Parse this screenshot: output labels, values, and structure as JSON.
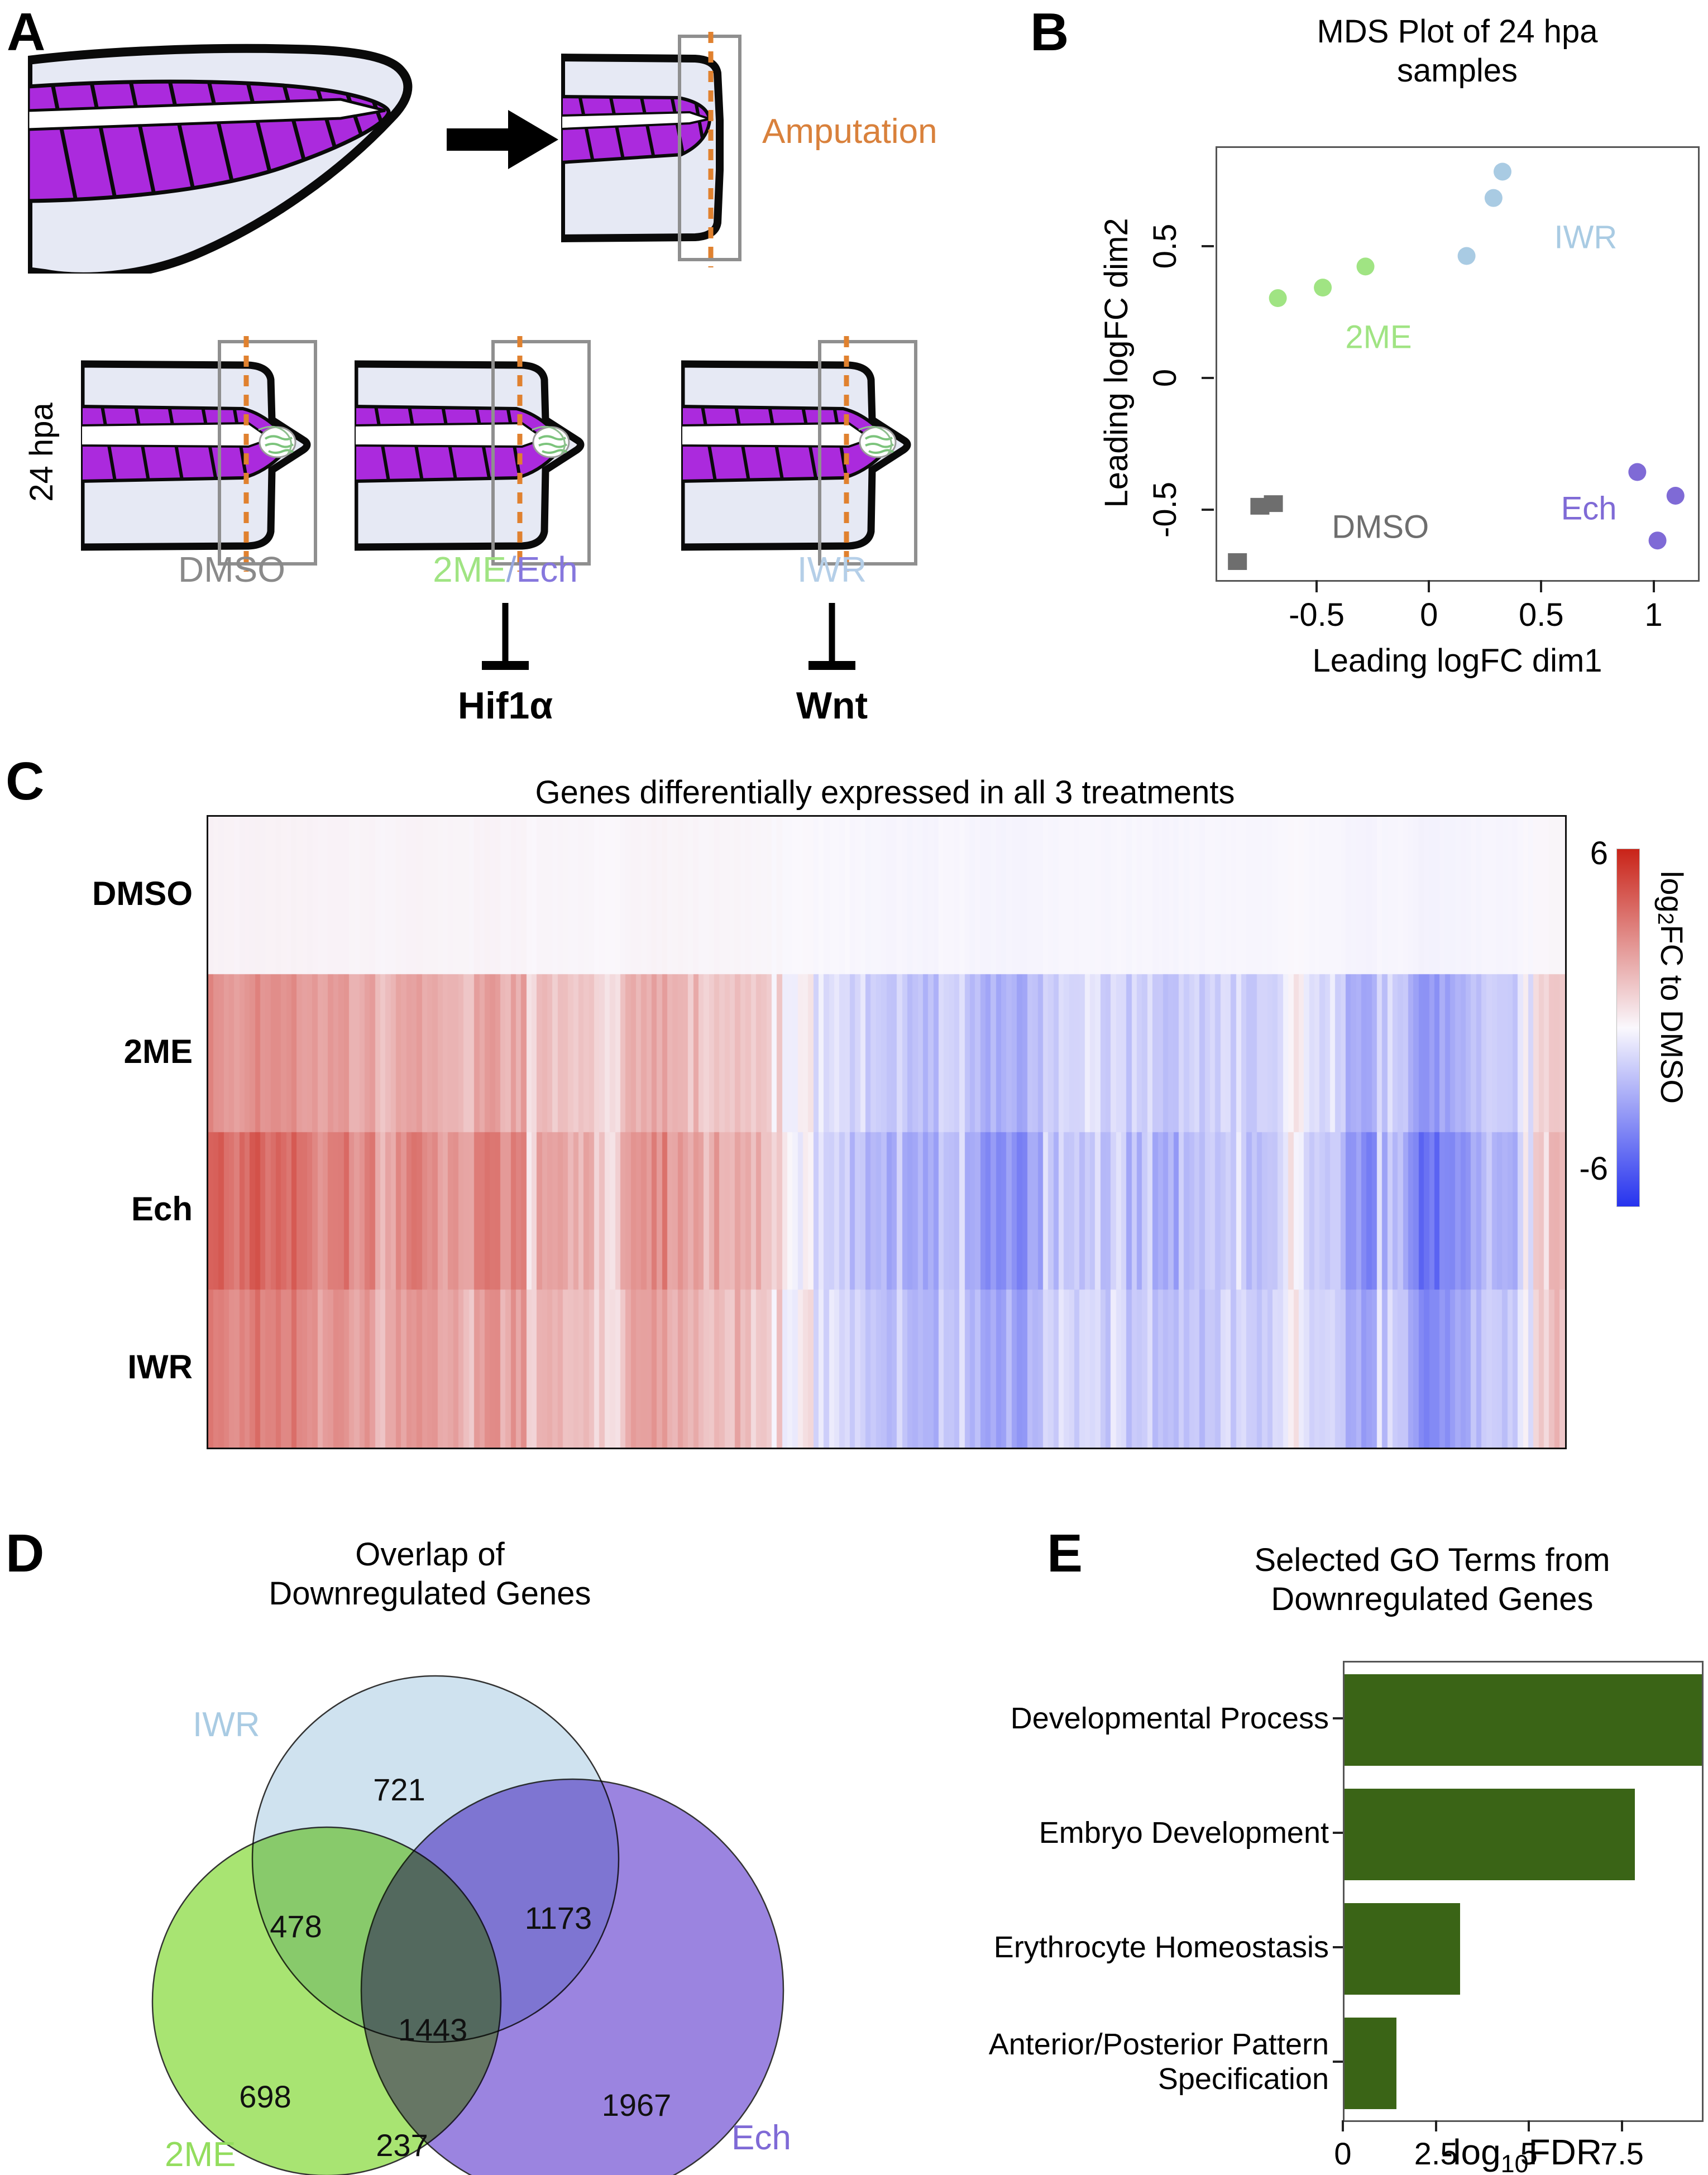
{
  "panels": {
    "a": "A",
    "b": "B",
    "c": "C",
    "d": "D",
    "e": "E"
  },
  "panel_a": {
    "amputation_label": "Amputation",
    "amputation_color": "#d9813c",
    "timepoint_label": "24 hpa",
    "fin_fill": "#e6e9f4",
    "muscle_fill": "#ab2add",
    "box_stroke": "#8f8f8f",
    "dash_color": "#e0812f",
    "treatments": [
      {
        "parts": [
          {
            "text": "DMSO",
            "color": "#8a8a8a"
          }
        ],
        "inhibits": ""
      },
      {
        "parts": [
          {
            "text": "2ME",
            "color": "#a0e483"
          },
          {
            "text": "/",
            "color": "#97a7e0"
          },
          {
            "text": "Ech",
            "color": "#8677dd"
          }
        ],
        "inhibits": "Hif1α"
      },
      {
        "parts": [
          {
            "text": "IWR",
            "color": "#b5cfe8"
          }
        ],
        "inhibits": "Wnt"
      }
    ]
  },
  "chart_data": [
    {
      "id": "mds",
      "type": "scatter",
      "title_lines": [
        "MDS Plot of 24 hpa",
        "samples"
      ],
      "xlabel": "Leading logFC dim1",
      "ylabel": "Leading logFC dim2",
      "xlim": [
        -0.95,
        1.19
      ],
      "ylim": [
        -0.76,
        0.88
      ],
      "x_ticks": [
        "-0.5",
        "0",
        "0.5",
        "1"
      ],
      "x_tick_vals": [
        -0.5,
        0,
        0.5,
        1
      ],
      "y_ticks": [
        "0.5",
        "0",
        "-0.5"
      ],
      "y_tick_vals": [
        0.5,
        0,
        -0.5
      ],
      "grid": false,
      "series": [
        {
          "name": "IWR",
          "color": "#a9cbe3",
          "marker": "circle",
          "points": [
            [
              0.32,
              0.79
            ],
            [
              0.28,
              0.69
            ],
            [
              0.16,
              0.47
            ]
          ],
          "label_pos": [
            0.55,
            0.5
          ]
        },
        {
          "name": "2ME",
          "color": "#a0e483",
          "marker": "circle",
          "points": [
            [
              -0.29,
              0.43
            ],
            [
              -0.48,
              0.35
            ],
            [
              -0.68,
              0.31
            ]
          ],
          "label_pos": [
            -0.38,
            0.12
          ]
        },
        {
          "name": "DMSO",
          "color": "#6e6e6e",
          "marker": "square",
          "points": [
            [
              -0.7,
              -0.47
            ],
            [
              -0.76,
              -0.48
            ],
            [
              -0.86,
              -0.69
            ]
          ],
          "label_pos": [
            -0.44,
            -0.6
          ]
        },
        {
          "name": "Ech",
          "color": "#7f6ad6",
          "marker": "circle",
          "points": [
            [
              0.92,
              -0.35
            ],
            [
              1.09,
              -0.44
            ],
            [
              1.01,
              -0.61
            ]
          ],
          "label_pos": [
            0.58,
            -0.53
          ]
        }
      ]
    },
    {
      "id": "heatmap",
      "type": "heatmap",
      "title": "Genes differentially expressed in all 3 treatments",
      "rows": [
        "DMSO",
        "2ME",
        "Ech",
        "IWR"
      ],
      "vmin": -6,
      "vmax": 6,
      "colorbar_max": "6",
      "colorbar_min": "-6",
      "colorbar_label": {
        "prefix": "log",
        "sub": "2",
        "suffix": "FC to DMSO"
      },
      "positive_color": "#c92318",
      "negative_color": "#2633ee",
      "zero_color": "#faf8fd",
      "n_cols": 260,
      "seed": 20,
      "row_scales": [
        0.02,
        0.78,
        1.22,
        0.92
      ],
      "profile": [
        [
          0,
          3.0
        ],
        [
          0.04,
          2.5
        ],
        [
          0.1,
          2.3
        ],
        [
          0.18,
          1.7
        ],
        [
          0.28,
          1.5
        ],
        [
          0.36,
          1.3
        ],
        [
          0.41,
          1.1
        ],
        [
          0.43,
          0.2
        ],
        [
          0.45,
          -0.7
        ],
        [
          0.52,
          -1.1
        ],
        [
          0.57,
          -1.7
        ],
        [
          0.62,
          -1.2
        ],
        [
          0.68,
          -1.0
        ],
        [
          0.74,
          -1.1
        ],
        [
          0.8,
          -0.7
        ],
        [
          0.85,
          -1.1
        ],
        [
          0.88,
          -2.0
        ],
        [
          0.91,
          -2.6
        ],
        [
          0.93,
          -1.4
        ],
        [
          0.95,
          -0.9
        ],
        [
          0.965,
          -0.6
        ],
        [
          0.978,
          0.8
        ],
        [
          1,
          1.7
        ]
      ]
    },
    {
      "id": "venn",
      "type": "venn3",
      "title_lines": [
        "Overlap of",
        "Downregulated Genes"
      ],
      "sets": [
        {
          "name": "IWR",
          "fill": "#cfe2ef",
          "label_color": "#a9cbe3"
        },
        {
          "name": "2ME",
          "fill": "#a8e472",
          "label_color": "#93dd5e"
        },
        {
          "name": "Ech",
          "fill": "#9largest",
          "label_color": "#7f6ad6"
        }
      ],
      "set_fills": {
        "iwr": "#cfe2ef",
        "me2": "#a8e472",
        "ech": "#9b84e0"
      },
      "set_labels": {
        "iwr": "IWR",
        "me2": "2ME",
        "ech": "Ech"
      },
      "counts": {
        "iwr_only": "721",
        "iwr_ech": "1173",
        "iwr_me2": "478",
        "center": "1443",
        "me2_only": "698",
        "me2_ech": "237",
        "ech_only": "1967"
      }
    },
    {
      "id": "go_terms",
      "type": "bar",
      "title_lines": [
        "Selected GO Terms from",
        "Downregulated Genes"
      ],
      "categories": [
        "Developmental Process",
        "Embryo Development",
        "Erythrocyte Homeostasis",
        "Anterior/Posterior Pattern Specification"
      ],
      "category_lines": [
        [
          "Developmental Process"
        ],
        [
          "Embryo Development"
        ],
        [
          "Erythrocyte Homeostasis"
        ],
        [
          "Anterior/Posterior Pattern",
          "Specification"
        ]
      ],
      "values": [
        9.6,
        7.8,
        3.1,
        1.4
      ],
      "xlim": [
        0,
        9.6
      ],
      "x_ticks": [
        "0",
        "2.5",
        "5",
        "7.5"
      ],
      "x_tick_vals": [
        0,
        2.5,
        5,
        7.5
      ],
      "xlabel": {
        "prefix": "-log",
        "sub": "10",
        "suffix": "FDR"
      },
      "bar_color": "#3a6416",
      "ylabel": "",
      "orientation": "horizontal"
    }
  ]
}
